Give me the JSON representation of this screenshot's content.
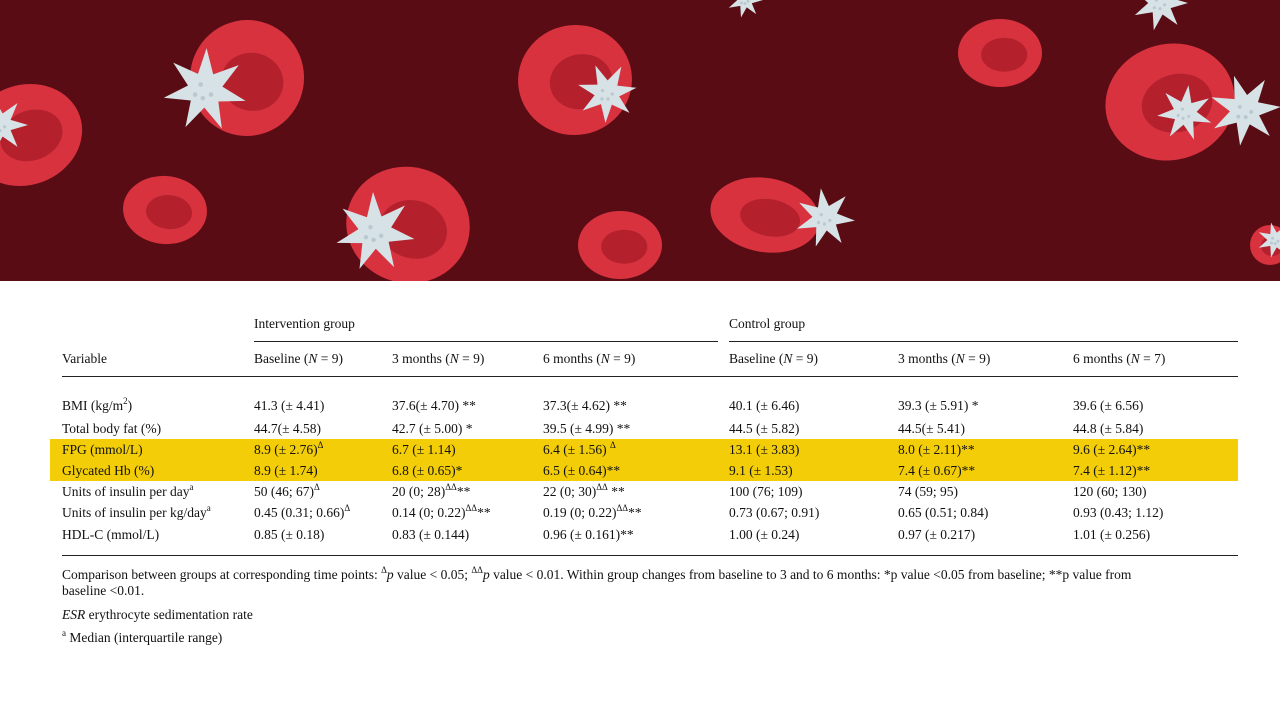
{
  "table": {
    "group_intervention": "Intervention group",
    "group_control": "Control group",
    "col_variable": "Variable",
    "columns": [
      {
        "pre": "Baseline (",
        "n": "N",
        "post": " = 9)"
      },
      {
        "pre": "3 months (",
        "n": "N",
        "post": " = 9)"
      },
      {
        "pre": "6 months (",
        "n": "N",
        "post": " = 9)"
      },
      {
        "pre": "Baseline (",
        "n": "N",
        "post": " = 9)"
      },
      {
        "pre": "3 months (",
        "n": "N",
        "post": " = 9)"
      },
      {
        "pre": "6 months (",
        "n": "N",
        "post": " = 7)"
      }
    ],
    "rows": [
      {
        "label": "BMI (kg/m",
        "label_sup": "2",
        "label_post": ")",
        "cells": [
          {
            "t": "41.3 (± 4.41)",
            "s": ""
          },
          {
            "t": "37.6(± 4.70) **",
            "s": ""
          },
          {
            "t": "37.3(± 4.62) **",
            "s": ""
          },
          {
            "t": "40.1 (± 6.46)",
            "s": ""
          },
          {
            "t": "39.3 (± 5.91) *",
            "s": ""
          },
          {
            "t": "39.6 (± 6.56)",
            "s": ""
          }
        ]
      },
      {
        "label": "Total body fat (%)",
        "label_sup": "",
        "label_post": "",
        "cells": [
          {
            "t": "44.7(± 4.58)",
            "s": ""
          },
          {
            "t": "42.7 (± 5.00) *",
            "s": ""
          },
          {
            "t": "39.5 (± 4.99) **",
            "s": ""
          },
          {
            "t": "44.5 (± 5.82)",
            "s": ""
          },
          {
            "t": "44.5(± 5.41)",
            "s": ""
          },
          {
            "t": "44.8 (± 5.84)",
            "s": ""
          }
        ]
      },
      {
        "label": "FPG (mmol/L)",
        "label_sup": "",
        "label_post": "",
        "highlight": true,
        "cells": [
          {
            "t": "8.9 (± 2.76)",
            "s": "Δ"
          },
          {
            "t": "6.7 (± 1.14)",
            "s": ""
          },
          {
            "t": "6.4 (± 1.56) ",
            "s": "Δ"
          },
          {
            "t": "13.1 (± 3.83)",
            "s": ""
          },
          {
            "t": "8.0 (± 2.11)**",
            "s": ""
          },
          {
            "t": "9.6 (± 2.64)**",
            "s": ""
          }
        ]
      },
      {
        "label": "Glycated Hb (%)",
        "label_sup": "",
        "label_post": "",
        "highlight": true,
        "cells": [
          {
            "t": "8.9 (± 1.74)",
            "s": ""
          },
          {
            "t": "6.8 (± 0.65)*",
            "s": ""
          },
          {
            "t": "6.5 (± 0.64)**",
            "s": ""
          },
          {
            "t": "9.1 (± 1.53)",
            "s": ""
          },
          {
            "t": "7.4 (± 0.67)**",
            "s": ""
          },
          {
            "t": "7.4 (± 1.12)**",
            "s": ""
          }
        ]
      },
      {
        "label": "Units of insulin per day",
        "label_sup": "a",
        "label_post": "",
        "cells": [
          {
            "t": "50 (46; 67)",
            "s": "Δ"
          },
          {
            "t": "20 (0; 28)",
            "s": "ΔΔ",
            "t2": "**"
          },
          {
            "t": "22 (0; 30)",
            "s": "ΔΔ",
            "t2": " **"
          },
          {
            "t": "100 (76; 109)",
            "s": ""
          },
          {
            "t": "74 (59; 95)",
            "s": ""
          },
          {
            "t": "120 (60; 130)",
            "s": ""
          }
        ]
      },
      {
        "label": "Units of insulin per kg/day",
        "label_sup": "a",
        "label_post": "",
        "cells": [
          {
            "t": "0.45 (0.31; 0.66)",
            "s": "Δ"
          },
          {
            "t": "0.14 (0; 0.22)",
            "s": "ΔΔ",
            "t2": "**"
          },
          {
            "t": "0.19 (0; 0.22)",
            "s": "ΔΔ",
            "t2": "**"
          },
          {
            "t": "0.73 (0.67; 0.91)",
            "s": ""
          },
          {
            "t": "0.65 (0.51; 0.84)",
            "s": ""
          },
          {
            "t": "0.93 (0.43; 1.12)",
            "s": ""
          }
        ]
      },
      {
        "label": "HDL-C (mmol/L)",
        "label_sup": "",
        "label_post": "",
        "cells": [
          {
            "t": "0.85 (± 0.18)",
            "s": ""
          },
          {
            "t": "0.83 (± 0.144)",
            "s": ""
          },
          {
            "t": "0.96 (± 0.161)**",
            "s": ""
          },
          {
            "t": "1.00 (± 0.24)",
            "s": ""
          },
          {
            "t": "0.97 (± 0.217)",
            "s": ""
          },
          {
            "t": "1.01 (± 0.256)",
            "s": ""
          }
        ]
      }
    ],
    "footnote_1a": "Comparison between groups at corresponding time points: ",
    "footnote_1_sym1": "Δ",
    "footnote_1_p": "p",
    "footnote_1b": " value < 0.05; ",
    "footnote_1_sym2": "ΔΔ",
    "footnote_1c": " value < 0.01. Within group changes from baseline to 3 and to 6 months: *p value <0.05 from baseline; **p value from",
    "footnote_1d": "baseline <0.01.",
    "footnote_2_abbr": "ESR",
    "footnote_2_text": " erythrocyte sedimentation rate",
    "footnote_3_sup": "a",
    "footnote_3_text": " Median (interquartile range)"
  },
  "colors": {
    "banner_bg": "#5a0c14",
    "cell_red": "#d8323f",
    "cell_red_dark": "#a81c28",
    "platelet": "#d6e2e6",
    "highlight": "#f3cd07"
  }
}
